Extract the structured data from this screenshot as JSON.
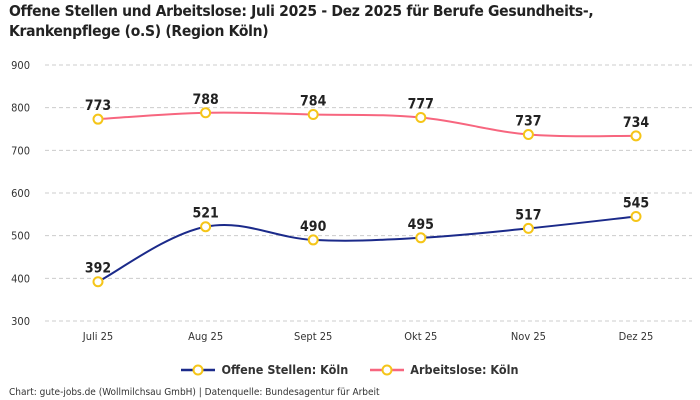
{
  "title": "Offene Stellen und Arbeitslose: Juli 2025 - Dez 2025 für Berufe Gesundheits-, Krankenpflege (o.S) (Region Köln)",
  "footer": "Chart: gute-jobs.de (Wollmilchsau GmbH) | Datenquelle: Bundesagentur für Arbeit",
  "chart_data": {
    "type": "line",
    "categories": [
      "Juli 25",
      "Aug 25",
      "Sept 25",
      "Okt 25",
      "Nov 25",
      "Dez 25"
    ],
    "ylim": [
      300,
      900
    ],
    "yticks": [
      300,
      400,
      500,
      600,
      700,
      800,
      900
    ],
    "grid": true,
    "legend_position": "bottom",
    "marker_color": "#f5c518",
    "series": [
      {
        "name": "Offene Stellen: Köln",
        "color": "#1b2a8a",
        "values": [
          392,
          521,
          490,
          495,
          517,
          545
        ]
      },
      {
        "name": "Arbeitslose: Köln",
        "color": "#f7667f",
        "values": [
          773,
          788,
          784,
          777,
          737,
          734
        ]
      }
    ]
  }
}
